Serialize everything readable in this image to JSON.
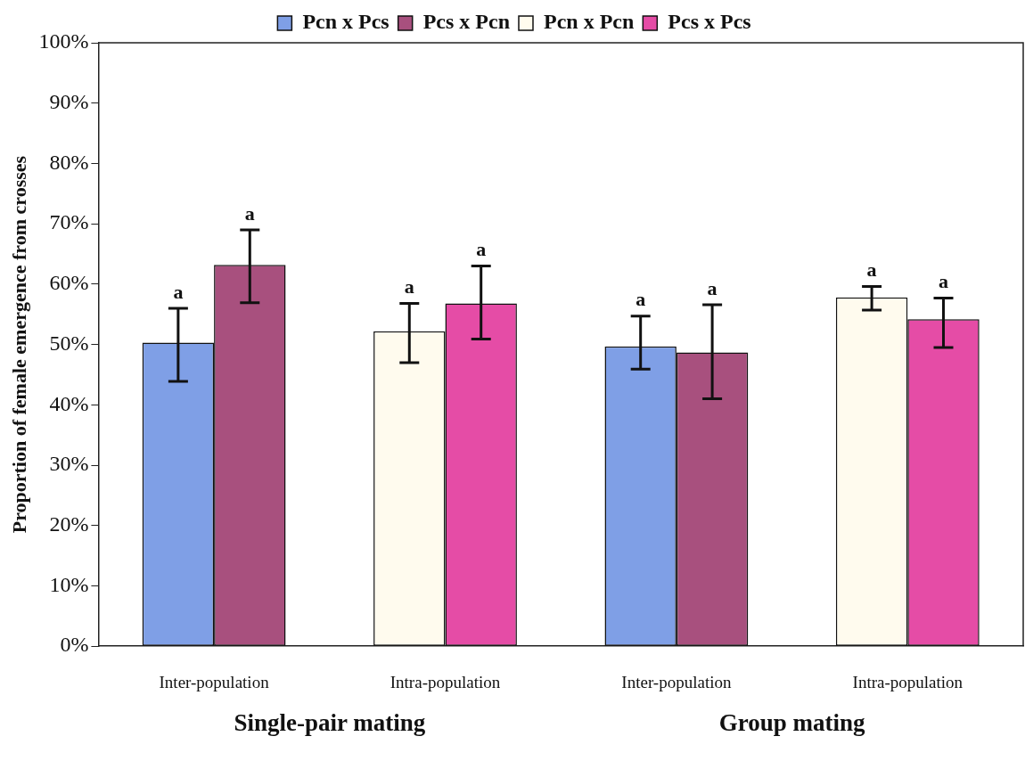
{
  "chart_data": {
    "type": "bar",
    "ylabel": "Proportion of female emergence from crosses",
    "categories": [
      "Inter-population",
      "Intra-population",
      "Inter-population",
      "Intra-population"
    ],
    "series": [
      {
        "name": "Pcn x Pcs",
        "color": "#7f9fe6",
        "values": [
          50.3,
          null,
          49.7,
          null
        ],
        "errors": [
          [
            43.9,
            56.0
          ],
          null,
          [
            45.9,
            54.7
          ],
          null
        ],
        "value_labels": [
          "a",
          null,
          "a",
          null
        ]
      },
      {
        "name": "Pcs x Pcn",
        "color": "#a8507e",
        "values": [
          63.2,
          null,
          48.7,
          null
        ],
        "errors": [
          [
            56.9,
            69.0
          ],
          null,
          [
            41.0,
            56.6
          ],
          null
        ],
        "value_labels": [
          "a",
          null,
          "a",
          null
        ]
      },
      {
        "name": "Pcn x Pcn",
        "color": "#fffbee",
        "values": [
          null,
          52.2,
          null,
          57.8
        ],
        "errors": [
          null,
          [
            47.0,
            56.8
          ],
          null,
          [
            55.7,
            59.6
          ]
        ],
        "value_labels": [
          null,
          "a",
          null,
          "a"
        ]
      },
      {
        "name": "Pcs x Pcs",
        "color": "#e54ca6",
        "values": [
          null,
          56.8,
          null,
          54.2
        ],
        "errors": [
          null,
          [
            50.9,
            63.0
          ],
          null,
          [
            49.5,
            57.7
          ]
        ],
        "value_labels": [
          null,
          "a",
          null,
          "a"
        ]
      }
    ],
    "annotations": [
      "Single-pair mating",
      "Group mating"
    ],
    "ylim": [
      0,
      100
    ],
    "yticks": [
      {
        "value": 0,
        "label": "0%"
      },
      {
        "value": 10,
        "label": "10%"
      },
      {
        "value": 20,
        "label": "20%"
      },
      {
        "value": 30,
        "label": "30%"
      },
      {
        "value": 40,
        "label": "40%"
      },
      {
        "value": 50,
        "label": "50%"
      },
      {
        "value": 60,
        "label": "60%"
      },
      {
        "value": 70,
        "label": "70%"
      },
      {
        "value": 80,
        "label": "80%"
      },
      {
        "value": 90,
        "label": "90%"
      },
      {
        "value": 100,
        "label": "100%"
      }
    ],
    "grid": false,
    "legend": "top"
  }
}
